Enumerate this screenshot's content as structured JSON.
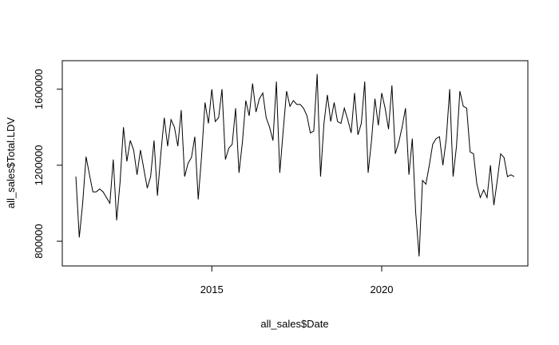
{
  "chart_data": {
    "type": "line",
    "title": "",
    "xlabel": "all_sales$Date",
    "ylabel": "all_sales$Total.LDV",
    "xlim": [
      2010.6,
      2024.3
    ],
    "ylim": [
      670000,
      1750000
    ],
    "x_ticks": [
      2015,
      2020
    ],
    "y_ticks": [
      800000,
      1200000,
      1600000
    ],
    "x_tick_labels": [
      "2015",
      "2020"
    ],
    "y_tick_labels": [
      "800000",
      "1200000",
      "1600000"
    ],
    "grid": false,
    "legend": "none",
    "color": "#000000",
    "series": [
      {
        "x": [
          2011.0,
          2011.1,
          2011.2,
          2011.3,
          2011.4,
          2011.5,
          2011.6,
          2011.7,
          2011.8,
          2011.9,
          2012.0,
          2012.1,
          2012.2,
          2012.3,
          2012.4,
          2012.5,
          2012.6,
          2012.7,
          2012.8,
          2012.9,
          2013.0,
          2013.1,
          2013.2,
          2013.3,
          2013.4,
          2013.5,
          2013.6,
          2013.7,
          2013.8,
          2013.9,
          2014.0,
          2014.1,
          2014.2,
          2014.3,
          2014.4,
          2014.5,
          2014.6,
          2014.7,
          2014.8,
          2014.9,
          2015.0,
          2015.1,
          2015.2,
          2015.3,
          2015.4,
          2015.5,
          2015.6,
          2015.7,
          2015.8,
          2015.9,
          2016.0,
          2016.1,
          2016.2,
          2016.3,
          2016.4,
          2016.5,
          2016.6,
          2016.7,
          2016.8,
          2016.9,
          2017.0,
          2017.1,
          2017.2,
          2017.3,
          2017.4,
          2017.5,
          2017.6,
          2017.7,
          2017.8,
          2017.9,
          2018.0,
          2018.1,
          2018.2,
          2018.3,
          2018.4,
          2018.5,
          2018.6,
          2018.7,
          2018.8,
          2018.9,
          2019.0,
          2019.1,
          2019.2,
          2019.3,
          2019.4,
          2019.5,
          2019.6,
          2019.7,
          2019.8,
          2019.9,
          2020.0,
          2020.1,
          2020.2,
          2020.3,
          2020.4,
          2020.5,
          2020.6,
          2020.7,
          2020.8,
          2020.9,
          2021.0,
          2021.1,
          2021.2,
          2021.3,
          2021.4,
          2021.5,
          2021.6,
          2021.7,
          2021.8,
          2021.9,
          2022.0,
          2022.1,
          2022.2,
          2022.3,
          2022.4,
          2022.5,
          2022.6,
          2022.7,
          2022.8,
          2022.9,
          2023.0,
          2023.1,
          2023.2,
          2023.3,
          2023.4,
          2023.5,
          2023.6,
          2023.7,
          2023.8,
          2023.9
        ],
        "y": [
          1140000,
          820000,
          1000000,
          1245000,
          1150000,
          1060000,
          1060000,
          1075000,
          1060000,
          1030000,
          1000000,
          1230000,
          910000,
          1110000,
          1400000,
          1220000,
          1330000,
          1280000,
          1150000,
          1280000,
          1180000,
          1080000,
          1140000,
          1330000,
          1040000,
          1260000,
          1450000,
          1300000,
          1440000,
          1400000,
          1300000,
          1490000,
          1140000,
          1210000,
          1240000,
          1350000,
          1020000,
          1250000,
          1530000,
          1420000,
          1600000,
          1430000,
          1450000,
          1600000,
          1230000,
          1290000,
          1310000,
          1500000,
          1160000,
          1320000,
          1540000,
          1460000,
          1630000,
          1480000,
          1550000,
          1580000,
          1450000,
          1400000,
          1330000,
          1640000,
          1160000,
          1380000,
          1590000,
          1510000,
          1540000,
          1520000,
          1520000,
          1500000,
          1460000,
          1370000,
          1380000,
          1680000,
          1140000,
          1420000,
          1570000,
          1430000,
          1530000,
          1430000,
          1420000,
          1500000,
          1440000,
          1370000,
          1580000,
          1360000,
          1420000,
          1640000,
          1160000,
          1330000,
          1550000,
          1410000,
          1580000,
          1500000,
          1390000,
          1620000,
          1260000,
          1320000,
          1400000,
          1500000,
          1150000,
          1340000,
          950000,
          720000,
          1120000,
          1100000,
          1200000,
          1310000,
          1340000,
          1350000,
          1200000,
          1340000,
          1600000,
          1140000,
          1300000,
          1590000,
          1510000,
          1500000,
          1270000,
          1260000,
          1100000,
          1030000,
          1070000,
          1030000,
          1200000,
          990000,
          1120000,
          1260000,
          1240000,
          1140000,
          1150000,
          1140000
        ]
      }
    ]
  }
}
